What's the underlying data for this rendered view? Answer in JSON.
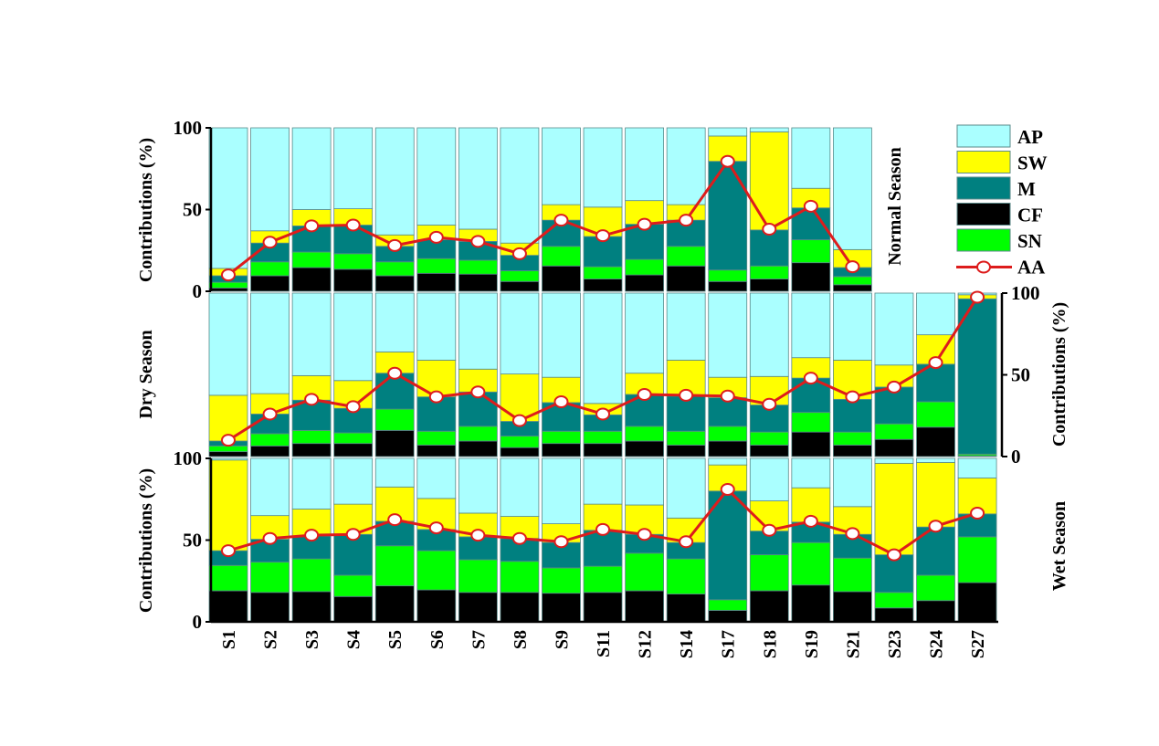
{
  "chart_data": {
    "type": "bar",
    "stacked": true,
    "categories_all": [
      "S1",
      "S2",
      "S3",
      "S4",
      "S5",
      "S6",
      "S7",
      "S8",
      "S9",
      "S11",
      "S12",
      "S14",
      "S17",
      "S18",
      "S19",
      "S21",
      "S23",
      "S24",
      "S27"
    ],
    "ylabel": "Contributions (%)",
    "ylim": [
      0,
      100
    ],
    "yticks": [
      "0",
      "50",
      "100"
    ],
    "legend": {
      "position": "top-right",
      "entries": [
        {
          "key": "AP",
          "label": "AP",
          "kind": "bar"
        },
        {
          "key": "SW",
          "label": "SW",
          "kind": "bar"
        },
        {
          "key": "M",
          "label": "M",
          "kind": "bar"
        },
        {
          "key": "CF",
          "label": "CF",
          "kind": "bar"
        },
        {
          "key": "SN",
          "label": "SN",
          "kind": "bar"
        },
        {
          "key": "AA",
          "label": "AA",
          "kind": "line"
        }
      ]
    },
    "colors": {
      "AP": "#aaffff",
      "SW": "#ffff00",
      "M": "#008080",
      "CF": "#000000",
      "SN": "#00ff00",
      "AA": "#dd1c1c",
      "bar_edge": "#5a8a8a"
    },
    "stack_order": [
      "CF",
      "SN",
      "M",
      "SW",
      "AP"
    ],
    "panels": [
      {
        "name": "Normal Season",
        "title": "Normal Season",
        "axis_side": "left",
        "inverted": false,
        "categories": [
          "S1",
          "S2",
          "S3",
          "S4",
          "S5",
          "S6",
          "S7",
          "S8",
          "S9",
          "S11",
          "S12",
          "S14",
          "S17",
          "S18",
          "S19",
          "S21"
        ],
        "series": [
          {
            "name": "CF",
            "values": [
              2,
              9.5,
              14.5,
              13.5,
              9.5,
              11,
              10.5,
              6,
              15.5,
              7.5,
              10,
              15.5,
              6,
              7.5,
              17.5,
              4
            ]
          },
          {
            "name": "SN",
            "values": [
              3.5,
              8.5,
              9.5,
              9.5,
              8.5,
              9,
              8.5,
              6.5,
              12,
              7.5,
              9.5,
              12,
              7,
              8,
              14,
              5
            ]
          },
          {
            "name": "M",
            "values": [
              4,
              11.5,
              16,
              17.5,
              9.5,
              11.5,
              11.5,
              9.5,
              16,
              18.5,
              21.5,
              16,
              66.5,
              22,
              19.5,
              5.5
            ]
          },
          {
            "name": "SW",
            "values": [
              4.5,
              7.5,
              10,
              10,
              7,
              9,
              7.5,
              7.5,
              9.5,
              18,
              14.5,
              9.5,
              15.5,
              60,
              12,
              11
            ]
          },
          {
            "name": "AP",
            "values": [
              86,
              63,
              50,
              49.5,
              65.5,
              59.5,
              62,
              70.5,
              47,
              48.5,
              44.5,
              47,
              5,
              2.5,
              37,
              74.5
            ]
          }
        ],
        "AA": [
          10,
          30,
          40,
          40.5,
          28,
          33,
          30.5,
          23,
          43.5,
          34,
          41,
          43.5,
          79.5,
          38,
          52,
          15
        ]
      },
      {
        "name": "Dry Season",
        "title": "Dry Season",
        "axis_side": "right",
        "inverted": false,
        "categories": [
          "S1",
          "S2",
          "S3",
          "S4",
          "S5",
          "S6",
          "S7",
          "S8",
          "S9",
          "S11",
          "S12",
          "S14",
          "S17",
          "S18",
          "S19",
          "S21",
          "S23",
          "S24",
          "S27"
        ],
        "series": [
          {
            "name": "CF",
            "values": [
              3,
              6.5,
              8,
              8,
              16,
              7,
              9.5,
              5.5,
              8,
              8,
              9.5,
              7,
              9.5,
              7,
              15,
              7,
              10.5,
              18,
              0.5
            ]
          },
          {
            "name": "SN",
            "values": [
              3.5,
              7.5,
              8,
              6.5,
              13,
              8.5,
              9,
              7,
              7.5,
              7.5,
              9,
              8.5,
              9,
              8,
              12,
              8,
              9.5,
              15.5,
              1
            ]
          },
          {
            "name": "M",
            "values": [
              3,
              12,
              18.5,
              15,
              22,
              21,
              21,
              9,
              17.5,
              10,
              19.5,
              21.5,
              17.5,
              16.5,
              21,
              20,
              22.5,
              23,
              95
            ]
          },
          {
            "name": "SW",
            "values": [
              28,
              12.5,
              15,
              17,
              13,
              22.5,
              14,
              29,
              15.5,
              7,
              13,
              22,
              12.5,
              17.5,
              12.5,
              24,
              13.5,
              18,
              2.5
            ]
          },
          {
            "name": "AP",
            "values": [
              62.5,
              61.5,
              50.5,
              53.5,
              36,
              41,
              46.5,
              49.5,
              51.5,
              67.5,
              49,
              41,
              51.5,
              51,
              39.5,
              41,
              44,
              25.5,
              1
            ]
          }
        ],
        "AA": [
          10,
          26,
          35,
          30.5,
          51,
          36.5,
          39.5,
          22,
          33.5,
          26,
          38,
          37.5,
          37,
          32,
          48,
          36.5,
          42.5,
          57.5,
          97.5
        ]
      },
      {
        "name": "Wet Season",
        "title": "Wet Season",
        "axis_side": "left",
        "inverted": false,
        "categories": [
          "S1",
          "S2",
          "S3",
          "S4",
          "S5",
          "S6",
          "S7",
          "S8",
          "S9",
          "S11",
          "S12",
          "S14",
          "S17",
          "S18",
          "S19",
          "S21",
          "S23",
          "S24",
          "S27"
        ],
        "series": [
          {
            "name": "CF",
            "values": [
              19,
              18,
              18.5,
              15.5,
              22,
              19.5,
              18,
              18,
              17.5,
              18,
              19,
              17,
              7,
              19,
              22.5,
              18.5,
              8.5,
              13,
              24
            ]
          },
          {
            "name": "SN",
            "values": [
              15.5,
              18.5,
              20,
              13,
              24.5,
              24,
              20,
              19,
              15.5,
              16,
              23,
              21.5,
              6.5,
              22,
              26,
              20.5,
              9.5,
              15.5,
              28
            ]
          },
          {
            "name": "M",
            "values": [
              9,
              14,
              14,
              25,
              15,
              13,
              14,
              14,
              15.5,
              22,
              11.5,
              10,
              66.5,
              14.5,
              12.5,
              14.5,
              23,
              29.5,
              14
            ]
          },
          {
            "name": "SW",
            "values": [
              55.5,
              14.5,
              16.5,
              18.5,
              21,
              19,
              14.5,
              13.5,
              11.5,
              16,
              18,
              15,
              16,
              18.5,
              21,
              17,
              56,
              39.5,
              22
            ]
          },
          {
            "name": "AP",
            "values": [
              1,
              35,
              31,
              28,
              17.5,
              24.5,
              33.5,
              35.5,
              40,
              28,
              28.5,
              36.5,
              4,
              26,
              18,
              29.5,
              3,
              2.5,
              12
            ]
          }
        ],
        "AA": [
          43.5,
          51,
          53,
          53.5,
          62.5,
          57.5,
          53,
          51,
          49,
          56.5,
          53.5,
          49,
          81,
          56,
          61.5,
          54,
          41,
          58.5,
          66.5
        ]
      }
    ]
  }
}
